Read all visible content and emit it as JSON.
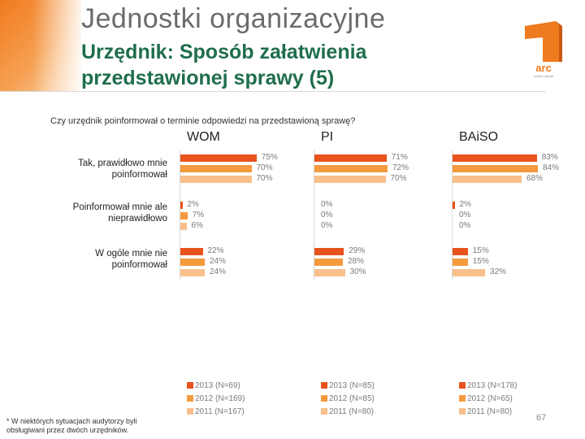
{
  "header": {
    "title": "Jednostki organizacyjne",
    "subtitle_line1": "Urzędnik: Sposób załatwienia",
    "subtitle_line2": "przedstawionej sprawy (5)",
    "logo_text": "arc",
    "logo_sub": "rynek i opinia"
  },
  "question": "Czy urzędnik poinformował o terminie odpowiedzi na przedstawioną sprawę?",
  "colors": {
    "y2013": "#e8531d",
    "y2012": "#f49a3e",
    "y2011": "#f8c08c"
  },
  "chart_data": {
    "type": "bar",
    "orientation": "horizontal",
    "groups": [
      "WOM",
      "PI",
      "BAiSO"
    ],
    "categories": [
      "Tak, prawidłowo mnie poinformował",
      "Poinformował mnie ale nieprawidłowo",
      "W ogóle mnie nie poinformował"
    ],
    "series": [
      {
        "name": "2013 (N=69)",
        "group": "WOM",
        "year": "2013",
        "values": [
          75,
          2,
          22
        ]
      },
      {
        "name": "2012 (N=169)",
        "group": "WOM",
        "year": "2012",
        "values": [
          70,
          7,
          24
        ]
      },
      {
        "name": "2011 (N=167)",
        "group": "WOM",
        "year": "2011",
        "values": [
          70,
          6,
          24
        ]
      },
      {
        "name": "2013 (N=85)",
        "group": "PI",
        "year": "2013",
        "values": [
          71,
          0,
          29
        ]
      },
      {
        "name": "2012 (N=85)",
        "group": "PI",
        "year": "2012",
        "values": [
          72,
          0,
          28
        ]
      },
      {
        "name": "2011 (N=80)",
        "group": "PI",
        "year": "2011",
        "values": [
          70,
          0,
          30
        ]
      },
      {
        "name": "2013 (N=178)",
        "group": "BAiSO",
        "year": "2013",
        "values": [
          83,
          2,
          15
        ]
      },
      {
        "name": "2012 (N=65)",
        "group": "BAiSO",
        "year": "2012",
        "values": [
          84,
          0,
          15
        ]
      },
      {
        "name": "2011 (N=80)",
        "group": "BAiSO",
        "year": "2011",
        "values": [
          68,
          0,
          32
        ]
      }
    ],
    "value_suffix": "%",
    "xlim": [
      0,
      100
    ],
    "legend_position": "bottom"
  },
  "footnote": "* W niektórych sytuacjach audytorzy byli obsługiwani przez dwóch urzędników.",
  "page_number": "67"
}
